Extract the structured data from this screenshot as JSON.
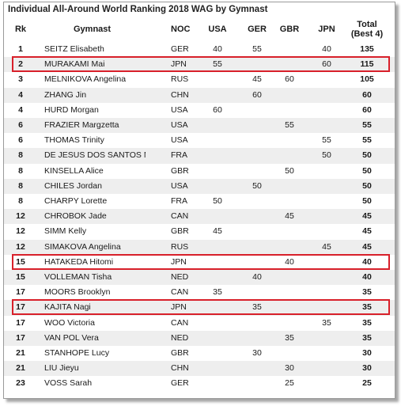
{
  "title": "Individual All-Around World Ranking 2018 WAG by Gymnast",
  "headers": {
    "rk": "Rk",
    "gymnast": "Gymnast",
    "noc": "NOC",
    "usa": "USA",
    "ger": "GER",
    "gbr": "GBR",
    "jpn": "JPN",
    "total_line1": "Total",
    "total_line2": "(Best 4)"
  },
  "highlight_color": "#d8202a",
  "rows": [
    {
      "rk": "1",
      "name": "SEITZ Elisabeth",
      "noc": "GER",
      "usa": "40",
      "ger": "55",
      "gbr": "",
      "jpn": "40",
      "total": "135"
    },
    {
      "rk": "2",
      "name": "MURAKAMI Mai",
      "noc": "JPN",
      "usa": "55",
      "ger": "",
      "gbr": "",
      "jpn": "60",
      "total": "115"
    },
    {
      "rk": "3",
      "name": "MELNIKOVA Angelina",
      "noc": "RUS",
      "usa": "",
      "ger": "45",
      "gbr": "60",
      "jpn": "",
      "total": "105"
    },
    {
      "rk": "4",
      "name": "ZHANG Jin",
      "noc": "CHN",
      "usa": "",
      "ger": "60",
      "gbr": "",
      "jpn": "",
      "total": "60"
    },
    {
      "rk": "4",
      "name": "HURD Morgan",
      "noc": "USA",
      "usa": "60",
      "ger": "",
      "gbr": "",
      "jpn": "",
      "total": "60"
    },
    {
      "rk": "6",
      "name": "FRAZIER Margzetta",
      "noc": "USA",
      "usa": "",
      "ger": "",
      "gbr": "55",
      "jpn": "",
      "total": "55"
    },
    {
      "rk": "6",
      "name": "THOMAS Trinity",
      "noc": "USA",
      "usa": "",
      "ger": "",
      "gbr": "",
      "jpn": "55",
      "total": "55"
    },
    {
      "rk": "8",
      "name": "DE JESUS DOS SANTOS Me",
      "noc": "FRA",
      "usa": "",
      "ger": "",
      "gbr": "",
      "jpn": "50",
      "total": "50"
    },
    {
      "rk": "8",
      "name": "KINSELLA Alice",
      "noc": "GBR",
      "usa": "",
      "ger": "",
      "gbr": "50",
      "jpn": "",
      "total": "50"
    },
    {
      "rk": "8",
      "name": "CHILES Jordan",
      "noc": "USA",
      "usa": "",
      "ger": "50",
      "gbr": "",
      "jpn": "",
      "total": "50"
    },
    {
      "rk": "8",
      "name": "CHARPY Lorette",
      "noc": "FRA",
      "usa": "50",
      "ger": "",
      "gbr": "",
      "jpn": "",
      "total": "50"
    },
    {
      "rk": "12",
      "name": "CHROBOK Jade",
      "noc": "CAN",
      "usa": "",
      "ger": "",
      "gbr": "45",
      "jpn": "",
      "total": "45"
    },
    {
      "rk": "12",
      "name": "SIMM Kelly",
      "noc": "GBR",
      "usa": "45",
      "ger": "",
      "gbr": "",
      "jpn": "",
      "total": "45"
    },
    {
      "rk": "12",
      "name": "SIMAKOVA Angelina",
      "noc": "RUS",
      "usa": "",
      "ger": "",
      "gbr": "",
      "jpn": "45",
      "total": "45"
    },
    {
      "rk": "15",
      "name": "HATAKEDA Hitomi",
      "noc": "JPN",
      "usa": "",
      "ger": "",
      "gbr": "40",
      "jpn": "",
      "total": "40"
    },
    {
      "rk": "15",
      "name": "VOLLEMAN Tisha",
      "noc": "NED",
      "usa": "",
      "ger": "40",
      "gbr": "",
      "jpn": "",
      "total": "40"
    },
    {
      "rk": "17",
      "name": "MOORS Brooklyn",
      "noc": "CAN",
      "usa": "35",
      "ger": "",
      "gbr": "",
      "jpn": "",
      "total": "35"
    },
    {
      "rk": "17",
      "name": "KAJITA Nagi",
      "noc": "JPN",
      "usa": "",
      "ger": "35",
      "gbr": "",
      "jpn": "",
      "total": "35"
    },
    {
      "rk": "17",
      "name": "WOO Victoria",
      "noc": "CAN",
      "usa": "",
      "ger": "",
      "gbr": "",
      "jpn": "35",
      "total": "35"
    },
    {
      "rk": "17",
      "name": "VAN POL Vera",
      "noc": "NED",
      "usa": "",
      "ger": "",
      "gbr": "35",
      "jpn": "",
      "total": "35"
    },
    {
      "rk": "21",
      "name": "STANHOPE Lucy",
      "noc": "GBR",
      "usa": "",
      "ger": "30",
      "gbr": "",
      "jpn": "",
      "total": "30"
    },
    {
      "rk": "21",
      "name": "LIU Jieyu",
      "noc": "CHN",
      "usa": "",
      "ger": "",
      "gbr": "30",
      "jpn": "",
      "total": "30"
    },
    {
      "rk": "23",
      "name": "VOSS Sarah",
      "noc": "GER",
      "usa": "",
      "ger": "",
      "gbr": "25",
      "jpn": "",
      "total": "25"
    }
  ],
  "highlighted_ranks": [
    "MURAKAMI Mai",
    "HATAKEDA Hitomi",
    "KAJITA Nagi"
  ]
}
